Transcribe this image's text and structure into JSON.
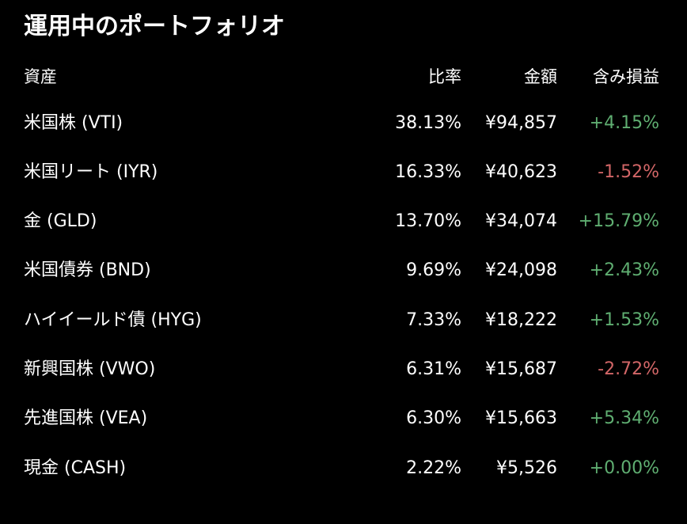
{
  "title": "運用中のポートフォリオ",
  "columns": {
    "asset": "資産",
    "ratio": "比率",
    "amount": "金額",
    "pl": "含み損益"
  },
  "colors": {
    "background": "#000000",
    "text": "#ffffff",
    "positive": "#5fae71",
    "negative": "#d26667"
  },
  "rows": [
    {
      "name": "米国株 (VTI)",
      "ratio": "38.13%",
      "amount": "¥94,857",
      "pl": "+4.15%",
      "pl_sign": "pos"
    },
    {
      "name": "米国リート (IYR)",
      "ratio": "16.33%",
      "amount": "¥40,623",
      "pl": "-1.52%",
      "pl_sign": "neg"
    },
    {
      "name": "金 (GLD)",
      "ratio": "13.70%",
      "amount": "¥34,074",
      "pl": "+15.79%",
      "pl_sign": "pos"
    },
    {
      "name": "米国債券 (BND)",
      "ratio": "9.69%",
      "amount": "¥24,098",
      "pl": "+2.43%",
      "pl_sign": "pos"
    },
    {
      "name": "ハイイールド債 (HYG)",
      "ratio": "7.33%",
      "amount": "¥18,222",
      "pl": "+1.53%",
      "pl_sign": "pos"
    },
    {
      "name": "新興国株 (VWO)",
      "ratio": "6.31%",
      "amount": "¥15,687",
      "pl": "-2.72%",
      "pl_sign": "neg"
    },
    {
      "name": "先進国株 (VEA)",
      "ratio": "6.30%",
      "amount": "¥15,663",
      "pl": "+5.34%",
      "pl_sign": "pos"
    },
    {
      "name": "現金 (CASH)",
      "ratio": "2.22%",
      "amount": "¥5,526",
      "pl": "+0.00%",
      "pl_sign": "pos"
    }
  ]
}
